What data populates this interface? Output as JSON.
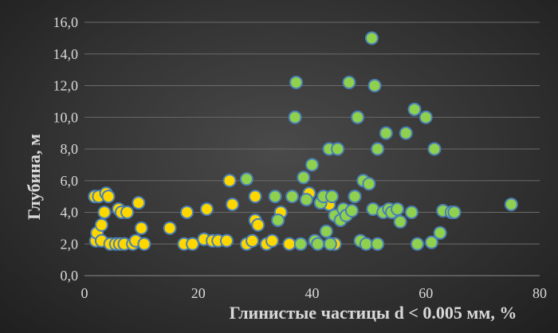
{
  "chart_data": {
    "type": "scatter",
    "xlabel": "Глинистые частицы d < 0.005 мм, %",
    "ylabel": "Глубина, м",
    "xlim": [
      0,
      80
    ],
    "ylim": [
      0,
      16
    ],
    "x_ticks": [
      0,
      20,
      40,
      60,
      80
    ],
    "y_ticks": [
      0.0,
      2.0,
      4.0,
      6.0,
      8.0,
      10.0,
      12.0,
      14.0,
      16.0
    ],
    "y_tick_labels": [
      "0,0",
      "2,0",
      "4,0",
      "6,0",
      "8,0",
      "10,0",
      "12,0",
      "14,0",
      "16,0"
    ],
    "grid": "horizontal",
    "legend": "none",
    "series": [
      {
        "color": "#ffd700",
        "edge_color": "#4a7fb5",
        "points": [
          [
            1.8,
            5.0
          ],
          [
            2.0,
            2.2
          ],
          [
            2.2,
            2.7
          ],
          [
            2.5,
            5.0
          ],
          [
            3.0,
            3.2
          ],
          [
            3.0,
            2.2
          ],
          [
            3.5,
            4.0
          ],
          [
            3.8,
            5.2
          ],
          [
            4.2,
            5.0
          ],
          [
            4.5,
            2.0
          ],
          [
            5.5,
            2.0
          ],
          [
            6.0,
            4.2
          ],
          [
            6.2,
            2.0
          ],
          [
            6.5,
            4.0
          ],
          [
            7.0,
            2.0
          ],
          [
            7.5,
            4.0
          ],
          [
            8.5,
            2.0
          ],
          [
            9.0,
            2.2
          ],
          [
            9.5,
            4.6
          ],
          [
            10.0,
            3.0
          ],
          [
            10.5,
            2.0
          ],
          [
            15.0,
            3.0
          ],
          [
            17.5,
            2.0
          ],
          [
            18.0,
            4.0
          ],
          [
            19.0,
            2.0
          ],
          [
            21.0,
            2.3
          ],
          [
            21.5,
            4.2
          ],
          [
            22.5,
            2.2
          ],
          [
            23.5,
            2.2
          ],
          [
            25.0,
            2.2
          ],
          [
            25.5,
            6.0
          ],
          [
            26.0,
            4.5
          ],
          [
            28.5,
            2.0
          ],
          [
            29.5,
            2.2
          ],
          [
            30.0,
            5.0
          ],
          [
            30.0,
            3.5
          ],
          [
            30.5,
            3.2
          ],
          [
            32.0,
            2.0
          ],
          [
            33.0,
            2.2
          ],
          [
            34.5,
            4.0
          ],
          [
            36.0,
            2.0
          ],
          [
            39.5,
            5.2
          ],
          [
            43.0,
            4.5
          ],
          [
            44.0,
            2.0
          ],
          [
            47.5,
            5.0
          ]
        ]
      },
      {
        "color": "#8fd14f",
        "edge_color": "#4a7fb5",
        "points": [
          [
            28.5,
            6.1
          ],
          [
            33.5,
            5.0
          ],
          [
            34.0,
            3.5
          ],
          [
            36.5,
            5.0
          ],
          [
            37.0,
            10.0
          ],
          [
            37.2,
            12.2
          ],
          [
            38.0,
            2.0
          ],
          [
            38.5,
            6.2
          ],
          [
            39.0,
            4.8
          ],
          [
            40.0,
            7.0
          ],
          [
            40.5,
            2.2
          ],
          [
            41.0,
            2.0
          ],
          [
            41.5,
            4.6
          ],
          [
            42.0,
            5.0
          ],
          [
            42.5,
            2.8
          ],
          [
            43.0,
            8.0
          ],
          [
            43.2,
            2.0
          ],
          [
            43.5,
            5.0
          ],
          [
            44.0,
            3.8
          ],
          [
            44.5,
            8.0
          ],
          [
            45.0,
            3.5
          ],
          [
            45.5,
            4.2
          ],
          [
            46.0,
            3.8
          ],
          [
            46.5,
            12.2
          ],
          [
            47.0,
            4.1
          ],
          [
            47.5,
            5.0
          ],
          [
            48.0,
            10.0
          ],
          [
            48.5,
            2.2
          ],
          [
            49.0,
            6.0
          ],
          [
            49.5,
            2.0
          ],
          [
            50.0,
            5.8
          ],
          [
            50.5,
            15.0
          ],
          [
            50.7,
            4.2
          ],
          [
            51.0,
            12.0
          ],
          [
            51.5,
            2.0
          ],
          [
            51.5,
            8.0
          ],
          [
            52.5,
            4.0
          ],
          [
            53.0,
            9.0
          ],
          [
            53.5,
            4.2
          ],
          [
            54.0,
            4.0
          ],
          [
            55.0,
            4.2
          ],
          [
            55.5,
            3.4
          ],
          [
            56.5,
            9.0
          ],
          [
            57.5,
            4.0
          ],
          [
            58.0,
            10.5
          ],
          [
            58.5,
            2.0
          ],
          [
            60.0,
            10.0
          ],
          [
            61.0,
            2.1
          ],
          [
            61.5,
            8.0
          ],
          [
            62.5,
            2.7
          ],
          [
            63.0,
            4.1
          ],
          [
            64.5,
            4.0
          ],
          [
            65.0,
            4.0
          ],
          [
            75.0,
            4.5
          ]
        ]
      }
    ]
  }
}
